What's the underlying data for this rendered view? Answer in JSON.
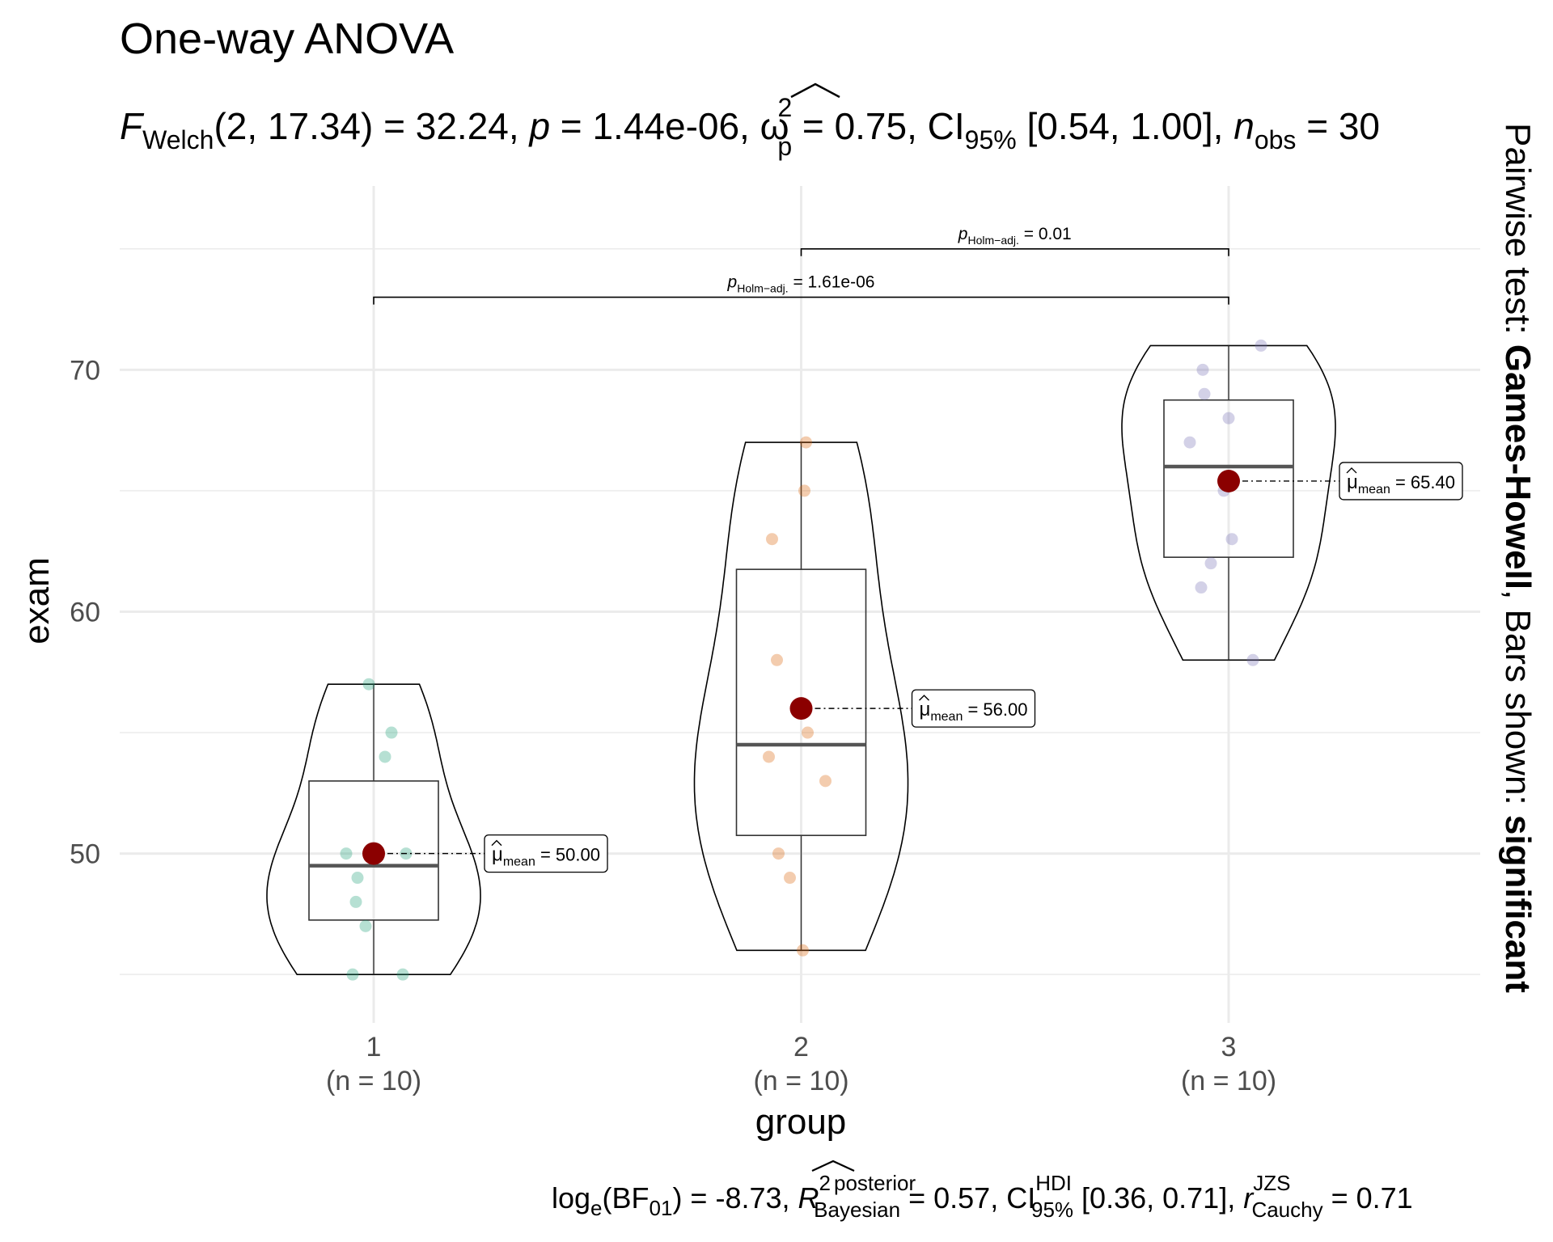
{
  "chart_data": {
    "type": "violin-box",
    "title": "One-way ANOVA",
    "subtitle": {
      "f_symbol": "F",
      "f_sub": "Welch",
      "f_args": "(2, 17.34) = 32.24, ",
      "p_symbol": "p",
      "p_value": " = 1.44e-06, ",
      "omega": "ω",
      "omega_sup": "2",
      "omega_sub": "p",
      "omega_value": " = 0.75, CI",
      "ci_sub": "95%",
      "ci_value": " [0.54, 1.00], ",
      "n_symbol": "n",
      "n_sub": "obs",
      "n_value": " = 30"
    },
    "xlabel": "group",
    "ylabel": "exam",
    "ylim": [
      43,
      77.6
    ],
    "y_ticks": [
      "50",
      "60",
      "70"
    ],
    "y_tick_values": [
      50,
      60,
      70
    ],
    "y_minor_values": [
      45,
      55,
      65,
      75
    ],
    "grid": true,
    "caption": {
      "log": "log",
      "log_sub": "e",
      "bf": "(BF",
      "bf_sub": "01",
      "bf_value": ") = -8.73, ",
      "r": "R",
      "r_sup": "2",
      "r_sup2": "posterior",
      "r_sub": "Bayesian",
      "r_value": " = 0.57, CI",
      "ci_sup": "HDI",
      "ci_sub": "95%",
      "ci_value": " [0.36, 0.71], ",
      "rc": "r",
      "rc_sup": "JZS",
      "rc_sub": "Cauchy",
      "rc_value": " = 0.71"
    },
    "side_label": {
      "prefix": "Pairwise test: ",
      "test": "Games-Howell",
      "middle": ", Bars shown: ",
      "shown": "significant"
    },
    "groups": [
      {
        "category": "1",
        "n_label": "(n = 10)",
        "color": "#1b9e77",
        "points": [
          57,
          55,
          54,
          50,
          50,
          49,
          48,
          47,
          45,
          45
        ],
        "box": {
          "q1": 47.25,
          "median": 49.5,
          "q3": 53,
          "min": 45,
          "max": 57
        },
        "mean": 50.0,
        "mean_label": "= 50.00"
      },
      {
        "category": "2",
        "n_label": "(n = 10)",
        "color": "#d95f02",
        "points": [
          67,
          65,
          63,
          58,
          55,
          54,
          53,
          50,
          49,
          46
        ],
        "box": {
          "q1": 50.75,
          "median": 54.5,
          "q3": 61.75,
          "min": 46,
          "max": 67
        },
        "mean": 56.0,
        "mean_label": "= 56.00"
      },
      {
        "category": "3",
        "n_label": "(n = 10)",
        "color": "#7570b3",
        "points": [
          71,
          70,
          69,
          68,
          67,
          65,
          63,
          62,
          61,
          58
        ],
        "box": {
          "q1": 62.25,
          "median": 66,
          "q3": 68.75,
          "min": 58,
          "max": 71
        },
        "mean": 65.4,
        "mean_label": "= 65.40"
      }
    ],
    "mean_symbol": "μ",
    "mean_sub": "mean",
    "mean_color": "#8b0000",
    "comparisons": [
      {
        "from": 2,
        "to": 3,
        "y": 75.0,
        "p_symbol": "p",
        "p_sub": "Holm−adj.",
        "p_value": " = 0.01"
      },
      {
        "from": 1,
        "to": 3,
        "y": 73.0,
        "p_symbol": "p",
        "p_sub": "Holm−adj.",
        "p_value": " = 1.61e-06"
      }
    ]
  }
}
